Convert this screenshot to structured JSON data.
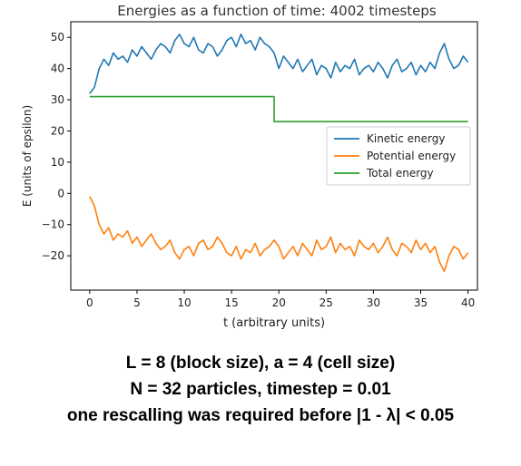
{
  "chart_data": {
    "type": "line",
    "title": "Energies as a function of time: 4002 timesteps",
    "xlabel": "t (arbitrary units)",
    "ylabel": "E (units of epsilon)",
    "xlim": [
      -2,
      41
    ],
    "ylim": [
      -31,
      55
    ],
    "xticks": [
      0,
      5,
      10,
      15,
      20,
      25,
      30,
      35,
      40
    ],
    "yticks": [
      50,
      40,
      30,
      20,
      10,
      0,
      -10,
      -20
    ],
    "x": [
      0,
      0.5,
      1,
      1.5,
      2,
      2.5,
      3,
      3.5,
      4,
      4.5,
      5,
      5.5,
      6,
      6.5,
      7,
      7.5,
      8,
      8.5,
      9,
      9.5,
      10,
      10.5,
      11,
      11.5,
      12,
      12.5,
      13,
      13.5,
      14,
      14.5,
      15,
      15.5,
      16,
      16.5,
      17,
      17.5,
      18,
      18.5,
      19,
      19.5,
      20,
      20.5,
      21,
      21.5,
      22,
      22.5,
      23,
      23.5,
      24,
      24.5,
      25,
      25.5,
      26,
      26.5,
      27,
      27.5,
      28,
      28.5,
      29,
      29.5,
      30,
      30.5,
      31,
      31.5,
      32,
      32.5,
      33,
      33.5,
      34,
      34.5,
      35,
      35.5,
      36,
      36.5,
      37,
      37.5,
      38,
      38.5,
      39,
      39.5,
      40
    ],
    "series": [
      {
        "name": "Kinetic energy",
        "color": "#1f77b4",
        "values": [
          32,
          34,
          40,
          43,
          41,
          45,
          43,
          44,
          42,
          46,
          44,
          47,
          45,
          43,
          46,
          48,
          47,
          45,
          49,
          51,
          48,
          47,
          50,
          46,
          45,
          48,
          47,
          44,
          46,
          49,
          50,
          47,
          51,
          48,
          49,
          46,
          50,
          48,
          47,
          45,
          40,
          44,
          42,
          40,
          43,
          39,
          41,
          43,
          38,
          41,
          40,
          37,
          42,
          39,
          41,
          40,
          43,
          38,
          40,
          41,
          39,
          42,
          40,
          37,
          41,
          43,
          39,
          40,
          42,
          38,
          41,
          39,
          42,
          40,
          45,
          48,
          43,
          40,
          41,
          44,
          42
        ]
      },
      {
        "name": "Potential energy",
        "color": "#ff7f0e",
        "values": [
          -1,
          -4,
          -10,
          -13,
          -11,
          -15,
          -13,
          -14,
          -12,
          -16,
          -14,
          -17,
          -15,
          -13,
          -16,
          -18,
          -17,
          -15,
          -19,
          -21,
          -18,
          -17,
          -20,
          -16,
          -15,
          -18,
          -17,
          -14,
          -16,
          -19,
          -20,
          -17,
          -21,
          -18,
          -19,
          -16,
          -20,
          -18,
          -17,
          -15,
          -17,
          -21,
          -19,
          -17,
          -20,
          -16,
          -18,
          -20,
          -15,
          -18,
          -17,
          -14,
          -19,
          -16,
          -18,
          -17,
          -20,
          -15,
          -17,
          -18,
          -16,
          -19,
          -17,
          -14,
          -18,
          -20,
          -16,
          -17,
          -19,
          -15,
          -18,
          -16,
          -19,
          -17,
          -22,
          -25,
          -20,
          -17,
          -18,
          -21,
          -19
        ]
      },
      {
        "name": "Total energy",
        "color": "#2ca02c",
        "values": [
          31,
          31,
          31,
          31,
          31,
          31,
          31,
          31,
          31,
          31,
          31,
          31,
          31,
          31,
          31,
          31,
          31,
          31,
          31,
          31,
          31,
          31,
          31,
          31,
          31,
          31,
          31,
          31,
          31,
          31,
          31,
          31,
          31,
          31,
          31,
          31,
          31,
          31,
          31,
          31,
          23,
          23,
          23,
          23,
          23,
          23,
          23,
          23,
          23,
          23,
          23,
          23,
          23,
          23,
          23,
          23,
          23,
          23,
          23,
          23,
          23,
          23,
          23,
          23,
          23,
          23,
          23,
          23,
          23,
          23,
          23,
          23,
          23,
          23,
          23,
          23,
          23,
          23,
          23,
          23,
          23
        ]
      }
    ],
    "legend": "center-right",
    "grid": false
  },
  "caption": {
    "line1": "L = 8 (block size),  a = 4 (cell size)",
    "line2": "N = 32 particles,  timestep = 0.01",
    "line3": "one rescalling was required before |1 - λ| < 0.05"
  }
}
